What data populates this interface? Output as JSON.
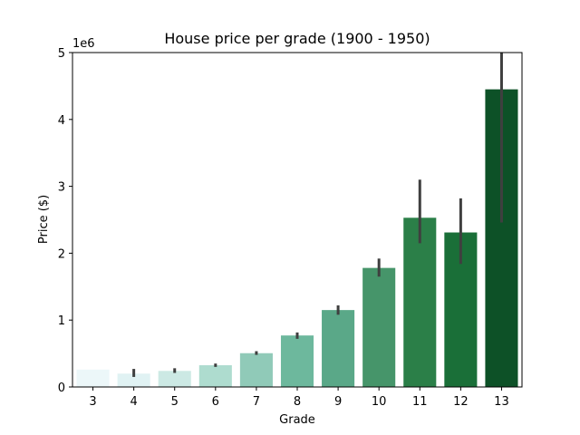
{
  "chart_data": {
    "type": "bar",
    "title": "House price per grade (1900 - 1950)",
    "xlabel": "Grade",
    "ylabel": "Price ($)",
    "y_offset_label": "1e6",
    "ylim": [
      0,
      5000000
    ],
    "yticks": [
      0,
      1000000,
      2000000,
      3000000,
      4000000,
      5000000
    ],
    "ytick_labels": [
      "0",
      "1",
      "2",
      "3",
      "4",
      "5"
    ],
    "categories": [
      "3",
      "4",
      "5",
      "6",
      "7",
      "8",
      "9",
      "10",
      "11",
      "12",
      "13"
    ],
    "values": [
      260000,
      200000,
      240000,
      325000,
      505000,
      770000,
      1150000,
      1780000,
      2530000,
      2310000,
      4450000
    ],
    "error_low": [
      null,
      150000,
      210000,
      300000,
      480000,
      720000,
      1080000,
      1650000,
      2150000,
      1840000,
      2460000
    ],
    "error_high": [
      null,
      270000,
      280000,
      350000,
      535000,
      815000,
      1220000,
      1920000,
      3100000,
      2820000,
      5000000
    ],
    "colors": [
      "#ecf7f9",
      "#e0f2f3",
      "#cce9e4",
      "#aedccf",
      "#90cab8",
      "#6db89d",
      "#5aa888",
      "#46956a",
      "#2b7f48",
      "#1a6f38",
      "#0d5127"
    ],
    "error_color": "#3f3f3f",
    "grid": false,
    "legend": "none"
  }
}
